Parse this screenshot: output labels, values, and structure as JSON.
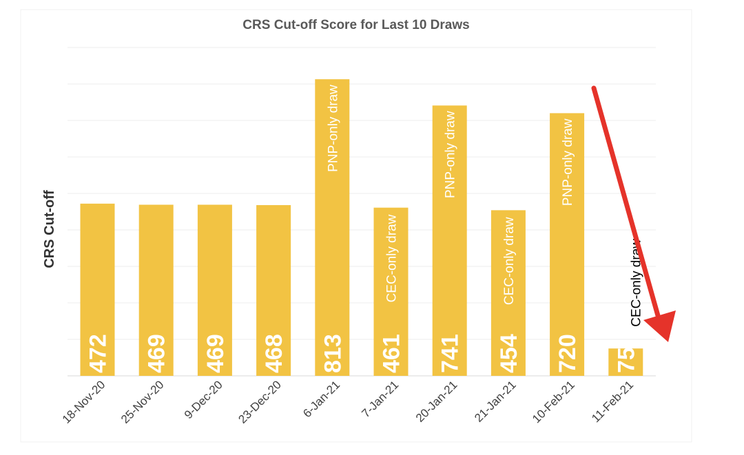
{
  "chart_data": {
    "type": "bar",
    "title": "CRS Cut-off Score for Last 10 Draws",
    "xlabel": "",
    "ylabel": "CRS Cut-off",
    "ylim": [
      0,
      900
    ],
    "grid": true,
    "legend": "none",
    "bar_color": "#F2C343",
    "categories": [
      "18-Nov-20",
      "25-Nov-20",
      "9-Dec-20",
      "23-Dec-20",
      "6-Jan-21",
      "7-Jan-21",
      "20-Jan-21",
      "21-Jan-21",
      "10-Feb-21",
      "11-Feb-21"
    ],
    "values": [
      472,
      469,
      469,
      468,
      813,
      461,
      741,
      454,
      720,
      75
    ],
    "value_labels": [
      "472",
      "469",
      "469",
      "468",
      "813",
      "461",
      "741",
      "454",
      "720",
      "75"
    ],
    "annotations": [
      "",
      "",
      "",
      "",
      "PNP-only draw",
      "CEC-only draw",
      "PNP-only draw",
      "CEC-only draw",
      "PNP-only draw",
      "CEC-only draw"
    ]
  },
  "colors": {
    "bar": "#F2C343",
    "gridline": "#ECECEC",
    "arrow": "#E5332A",
    "title_text": "#595959",
    "axis_text": "#404040"
  },
  "overlay": {
    "arrow": "red-arrow-pointing-down"
  }
}
